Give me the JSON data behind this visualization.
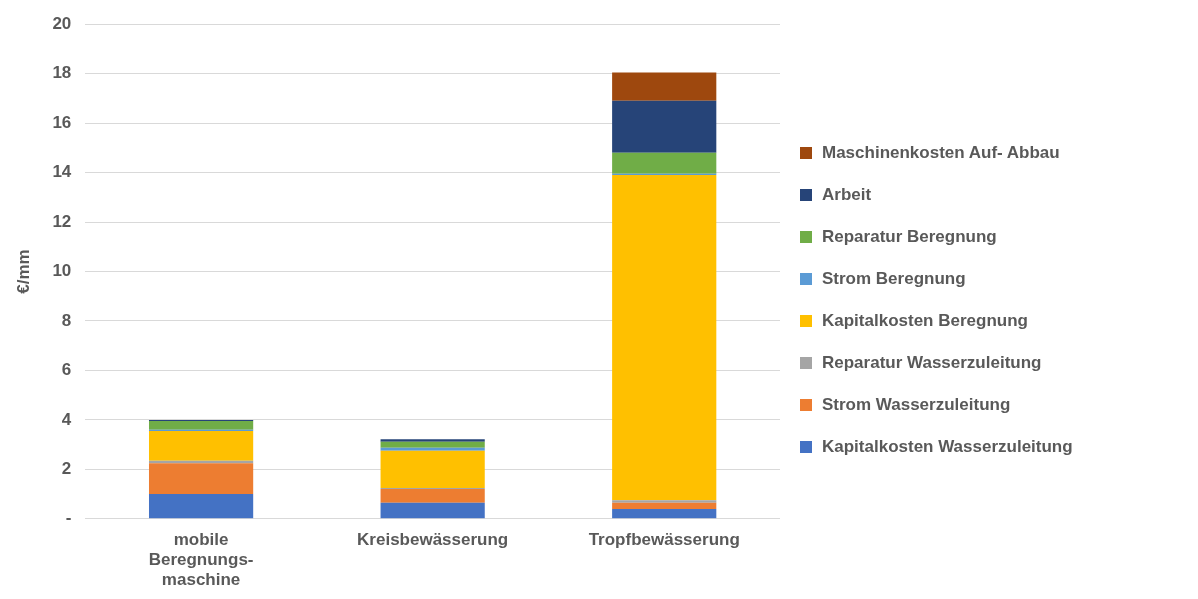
{
  "chart_data": {
    "type": "bar",
    "stacked": true,
    "ylabel": "€/mm",
    "categories": [
      "mobile\nBeregnungs-\nmaschine",
      "Kreisbewässerung",
      "Tropfbewässerung"
    ],
    "series": [
      {
        "name": "Kapitalkosten Wasserzuleitung",
        "color": "#4472c4",
        "values": [
          1.0,
          0.65,
          0.4
        ]
      },
      {
        "name": "Strom Wasserzuleitung",
        "color": "#ed7d31",
        "values": [
          1.25,
          0.55,
          0.25
        ]
      },
      {
        "name": "Reparatur Wasserzuleitung",
        "color": "#a5a5a5",
        "values": [
          0.1,
          0.05,
          0.1
        ]
      },
      {
        "name": "Kapitalkosten Beregnung",
        "color": "#ffc000",
        "values": [
          1.2,
          1.5,
          13.15
        ]
      },
      {
        "name": "Strom Beregnung",
        "color": "#5b9bd5",
        "values": [
          0.05,
          0.12,
          0.05
        ]
      },
      {
        "name": "Reparatur Beregnung",
        "color": "#70ad47",
        "values": [
          0.35,
          0.25,
          0.85
        ]
      },
      {
        "name": "Arbeit",
        "color": "#264478",
        "values": [
          0.05,
          0.1,
          2.1
        ]
      },
      {
        "name": "Maschinenkosten Auf- Abbau",
        "color": "#9e480e",
        "values": [
          0,
          0,
          1.15
        ]
      }
    ],
    "ylim": [
      0,
      20
    ],
    "yticks": [
      {
        "value": 0,
        "label": "-"
      },
      2,
      4,
      6,
      8,
      10,
      12,
      14,
      16,
      18,
      20
    ],
    "grid": "y",
    "legend": "right"
  }
}
